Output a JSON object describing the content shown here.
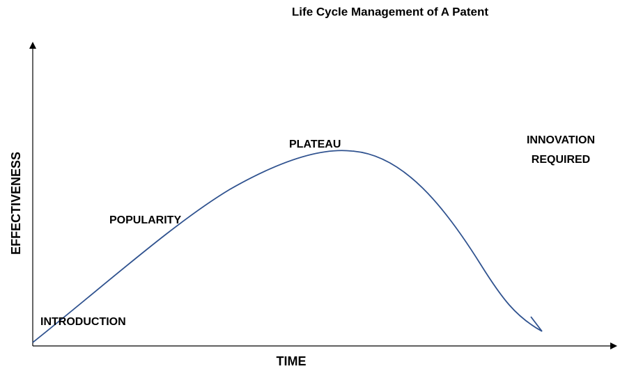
{
  "title": "Life Cycle Management of A Patent",
  "axes": {
    "x_label": "TIME",
    "y_label": "EFFECTIVENESS"
  },
  "stages": {
    "introduction": "INTRODUCTION",
    "popularity": "POPULARITY",
    "plateau": "PLATEAU",
    "innovation": [
      "INNOVATION",
      "REQUIRED"
    ]
  }
}
